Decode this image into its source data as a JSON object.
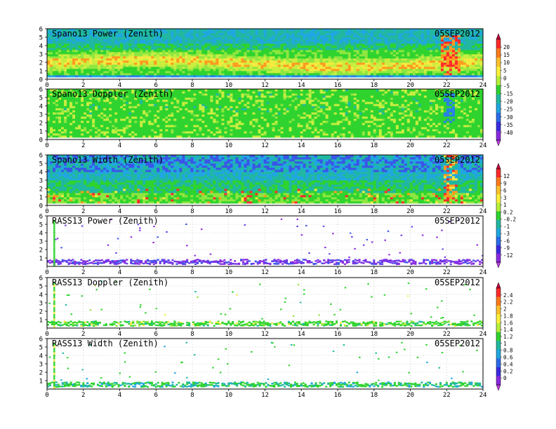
{
  "chart_data": {
    "type": "heatmap",
    "x_ticks": [
      "0",
      "2",
      "4",
      "6",
      "8",
      "10",
      "12",
      "14",
      "16",
      "18",
      "20",
      "22",
      "24"
    ],
    "xlim": [
      0,
      24
    ],
    "grid": true,
    "colorbars": [
      {
        "labels": [
          "20",
          "15",
          "10",
          "5",
          "0",
          "-5",
          "-15",
          "-20",
          "-25",
          "-30",
          "-35",
          "-40"
        ],
        "colors": [
          "#c0003c",
          "#ff2a2a",
          "#ff7a1a",
          "#ffc22a",
          "#fff23a",
          "#b8f03a",
          "#2fd32f",
          "#20b8a0",
          "#20a7e0",
          "#2a6ce8",
          "#3a2ae0",
          "#8a2ae0",
          "#c03ae8"
        ]
      },
      {
        "labels": [
          "12",
          "9",
          "6",
          "3",
          "1",
          "0.2",
          "-0.2",
          "-1",
          "-3",
          "-6",
          "-9",
          "-12"
        ],
        "colors": [
          "#c0003c",
          "#ff2a2a",
          "#ff7a1a",
          "#ffc22a",
          "#fff23a",
          "#b8f03a",
          "#2fd32f",
          "#20b8a0",
          "#20a7e0",
          "#2a6ce8",
          "#3a2ae0",
          "#8a2ae0",
          "#c03ae8"
        ]
      },
      {
        "labels": [
          "2.4",
          "2.2",
          "2",
          "1.8",
          "1.6",
          "1.4",
          "1.2",
          "1",
          "0.8",
          "0.6",
          "0.4",
          "0.2",
          "0"
        ],
        "colors": [
          "#c0003c",
          "#ff2a2a",
          "#ff7a1a",
          "#ffc22a",
          "#fff23a",
          "#b8f03a",
          "#2fd32f",
          "#20b8a0",
          "#20a7e0",
          "#2a6ce8",
          "#3a2ae0",
          "#8a2ae0",
          "#c03ae8"
        ]
      }
    ],
    "panels": [
      {
        "title": "Spano13 Power (Zenith)",
        "date": "05SEP2012",
        "y_ticks": [
          "0",
          "1",
          "2",
          "3",
          "4",
          "5",
          "6"
        ],
        "ylim": [
          0,
          6
        ],
        "pattern": "power",
        "colorbar": 0
      },
      {
        "title": "Spano13 Doppler (Zenith)",
        "date": "05SEP2012",
        "y_ticks": [
          "0",
          "1",
          "2",
          "3",
          "4",
          "5",
          "6"
        ],
        "ylim": [
          0,
          6
        ],
        "pattern": "doppler",
        "colorbar": 0
      },
      {
        "title": "Spano13 Width (Zenith)",
        "date": "05SEP2012",
        "y_ticks": [
          "0",
          "1",
          "2",
          "3",
          "4",
          "5",
          "6"
        ],
        "ylim": [
          0,
          6
        ],
        "pattern": "width",
        "colorbar": 1
      },
      {
        "title": "RASS13 Power (Zenith)",
        "date": "05SEP2012",
        "y_ticks": [
          "1",
          "2",
          "3",
          "4",
          "5",
          "6"
        ],
        "ylim": [
          0,
          6
        ],
        "pattern": "rass_power",
        "colorbar": 1
      },
      {
        "title": "RASS13 Doppler (Zenith)",
        "date": "05SEP2012",
        "y_ticks": [
          "1",
          "2",
          "3",
          "4",
          "5",
          "6"
        ],
        "ylim": [
          0,
          6
        ],
        "pattern": "rass_doppler",
        "colorbar": 2
      },
      {
        "title": "RASS13 Width (Zenith)",
        "date": "05SEP2012",
        "y_ticks": [
          "1",
          "2",
          "3",
          "4",
          "5",
          "6"
        ],
        "ylim": [
          0,
          6
        ],
        "pattern": "rass_width",
        "colorbar": 2
      }
    ]
  }
}
